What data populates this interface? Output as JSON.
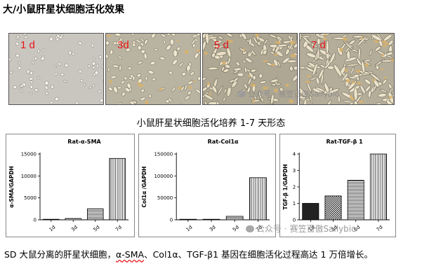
{
  "title": "大/小鼠肝星状细胞活化效果",
  "micrographs": [
    {
      "label": "1 d"
    },
    {
      "label": "3d"
    },
    {
      "label": "5 d"
    },
    {
      "label": "7 d"
    }
  ],
  "watermark_text": "公众号 · 赛笠百傲Sailybio",
  "caption": "小鼠肝星状细胞活化培养 1-7 天形态",
  "chart_data": [
    {
      "type": "bar",
      "title": "Rat-α-SMA",
      "ylabel": "α-SMA/GAPDH",
      "categories": [
        "1d",
        "3d",
        "5d",
        "7d"
      ],
      "values": [
        10,
        300,
        2500,
        14000
      ],
      "ylim": [
        0,
        15000
      ],
      "yticks": [
        0,
        5000,
        10000,
        15000
      ],
      "fills": [
        "dots",
        "dense-dots",
        "hlines",
        "vlines"
      ]
    },
    {
      "type": "bar",
      "title": "Rat-Col1α",
      "ylabel": "Col1α /GAPDH",
      "categories": [
        "1d",
        "3d",
        "5d",
        "7d"
      ],
      "values": [
        100,
        800,
        8000,
        96000
      ],
      "ylim": [
        0,
        150000
      ],
      "yticks": [
        0,
        50000,
        100000,
        150000
      ],
      "fills": [
        "dots",
        "dense-dots",
        "hlines",
        "vlines"
      ]
    },
    {
      "type": "bar",
      "title": "Rat-TGF-β 1",
      "ylabel": "TGF-β 1/GAPDH",
      "categories": [
        "1d",
        "3d",
        "5d",
        "7d"
      ],
      "values": [
        1.0,
        1.45,
        2.4,
        4.0
      ],
      "ylim": [
        0,
        4
      ],
      "yticks": [
        0,
        1,
        2,
        3,
        4
      ],
      "fills": [
        "solid",
        "check",
        "hlines",
        "vlines"
      ]
    }
  ],
  "body": {
    "part1": "SD 大鼠分离的肝星状细胞，",
    "highlight": "α-SMA",
    "part2": "、Col1α、TGF-β1 基因在细胞活化过程高达 1 万倍增长。"
  }
}
